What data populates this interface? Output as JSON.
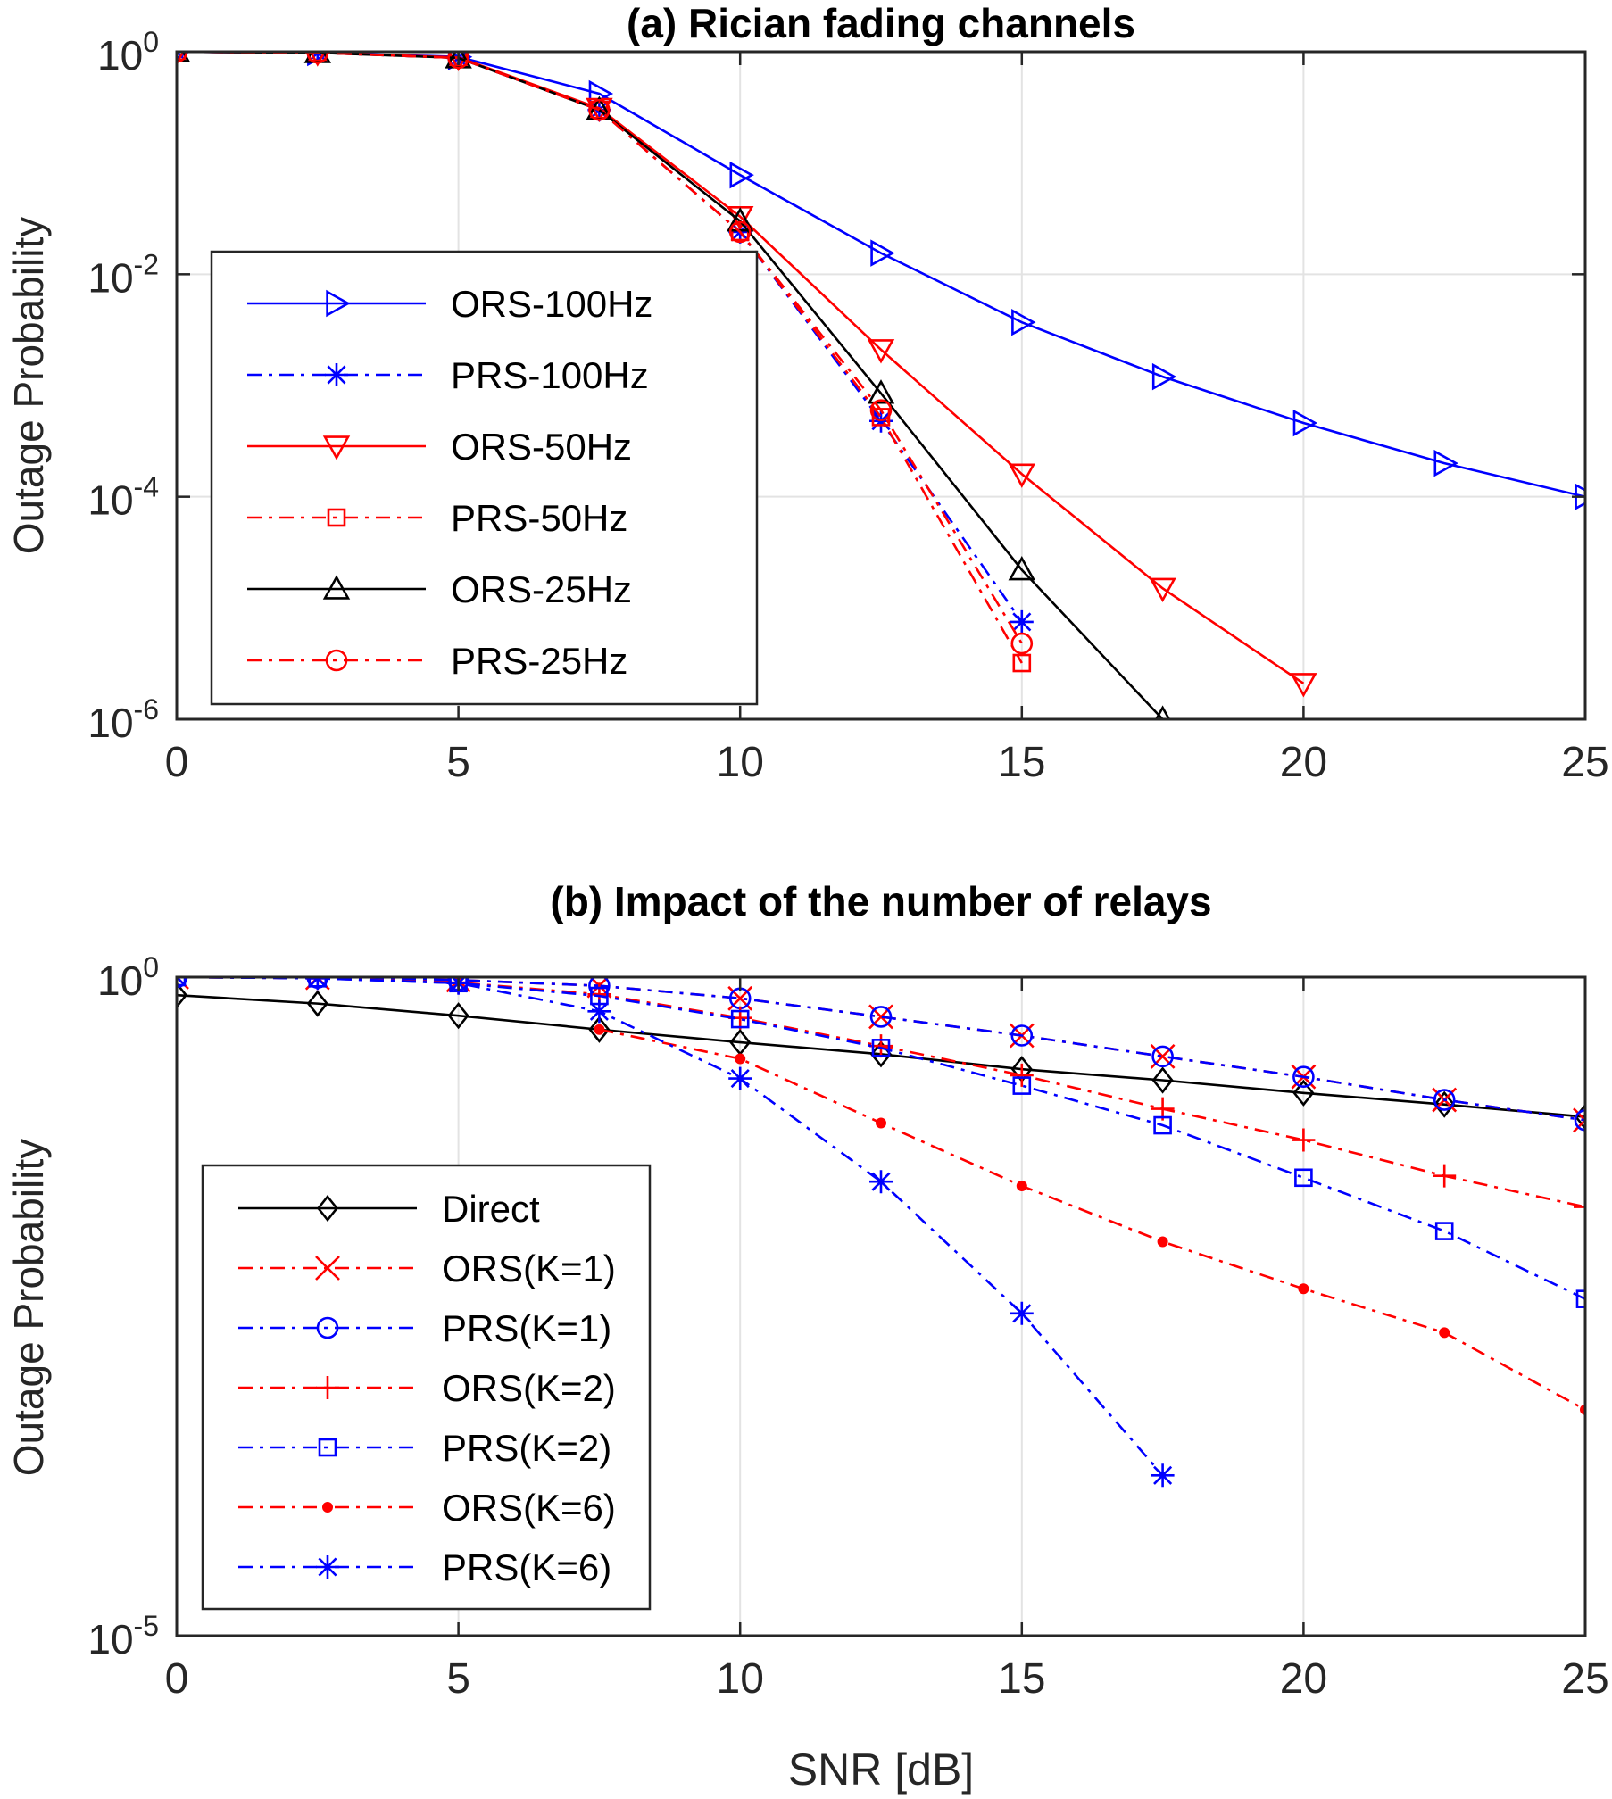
{
  "chart_data": [
    {
      "type": "line",
      "title": "(a) Rician fading channels",
      "xlabel": "",
      "ylabel": "Outage Probability",
      "xlim": [
        0,
        25
      ],
      "ylim": [
        1e-06,
        1
      ],
      "yscale": "log",
      "grid": true,
      "legend_position": "left-center",
      "xticks": [
        0,
        5,
        10,
        15,
        20,
        25
      ],
      "xtick_labels": [
        "0",
        "5",
        "10",
        "15",
        "20",
        "25"
      ],
      "yticks": [
        {
          "value": 1,
          "base": "10",
          "exp": "0"
        },
        {
          "value": 0.01,
          "base": "10",
          "exp": "-2"
        },
        {
          "value": 0.0001,
          "base": "10",
          "exp": "-4"
        },
        {
          "value": 1e-06,
          "base": "10",
          "exp": "-6"
        }
      ],
      "series": [
        {
          "name": "ORS-100Hz",
          "color": "#0000ff",
          "dash": "solid",
          "marker": "triangle-right",
          "x": [
            0,
            2.5,
            5,
            7.5,
            10,
            12.5,
            15,
            17.5,
            20,
            22.5,
            25
          ],
          "y": [
            1,
            0.98,
            0.9,
            0.42,
            0.078,
            0.0155,
            0.0037,
            0.0012,
            0.00046,
            0.0002,
            0.0001
          ]
        },
        {
          "name": "PRS-100Hz",
          "color": "#0000ff",
          "dash": "dashdot",
          "marker": "asterisk",
          "x": [
            0,
            2.5,
            5,
            7.5,
            10,
            12.5,
            15
          ],
          "y": [
            1,
            0.98,
            0.88,
            0.3,
            0.024,
            0.00048,
            7.5e-06
          ]
        },
        {
          "name": "ORS-50Hz",
          "color": "#ff0000",
          "dash": "solid",
          "marker": "triangle-down",
          "x": [
            0,
            2.5,
            5,
            7.5,
            10,
            12.5,
            15,
            17.5,
            20
          ],
          "y": [
            1,
            0.98,
            0.89,
            0.31,
            0.033,
            0.0021,
            0.00016,
            1.5e-05,
            2.1e-06
          ]
        },
        {
          "name": "PRS-50Hz",
          "color": "#ff0000",
          "dash": "dashdot",
          "marker": "square",
          "x": [
            0,
            2.5,
            5,
            7.5,
            10,
            12.5,
            15
          ],
          "y": [
            1,
            0.98,
            0.88,
            0.3,
            0.024,
            0.00052,
            3.2e-06
          ]
        },
        {
          "name": "ORS-25Hz",
          "color": "#000000",
          "dash": "solid",
          "marker": "triangle-up",
          "x": [
            0,
            2.5,
            5,
            7.5,
            10,
            12.5,
            15,
            17.5
          ],
          "y": [
            1,
            0.98,
            0.88,
            0.3,
            0.03,
            0.00085,
            2.2e-05,
            1e-06
          ]
        },
        {
          "name": "PRS-25Hz",
          "color": "#ff0000",
          "dash": "dashdot",
          "marker": "circle",
          "x": [
            0,
            2.5,
            5,
            7.5,
            10,
            12.5,
            15
          ],
          "y": [
            1,
            0.98,
            0.88,
            0.3,
            0.024,
            0.0006,
            4.8e-06
          ]
        }
      ]
    },
    {
      "type": "line",
      "title": "(b) Impact of the number of relays",
      "xlabel": "SNR [dB]",
      "ylabel": "Outage Probability",
      "xlim": [
        0,
        25
      ],
      "ylim": [
        1e-05,
        1
      ],
      "yscale": "log",
      "grid": true,
      "legend_position": "left-bottom",
      "xticks": [
        0,
        5,
        10,
        15,
        20,
        25
      ],
      "xtick_labels": [
        "0",
        "5",
        "10",
        "15",
        "20",
        "25"
      ],
      "yticks": [
        {
          "value": 1,
          "base": "10",
          "exp": "0"
        },
        {
          "value": 1e-05,
          "base": "10",
          "exp": "-5"
        }
      ],
      "series": [
        {
          "name": "Direct",
          "color": "#000000",
          "dash": "solid",
          "marker": "diamond",
          "x": [
            0,
            2.5,
            5,
            7.5,
            10,
            12.5,
            15,
            17.5,
            20,
            22.5,
            25
          ],
          "y": [
            0.73,
            0.63,
            0.51,
            0.4,
            0.32,
            0.26,
            0.2,
            0.165,
            0.132,
            0.108,
            0.087
          ]
        },
        {
          "name": "ORS(K=1)",
          "color": "#ff0000",
          "dash": "dashdot",
          "marker": "x",
          "x": [
            0,
            2.5,
            5,
            7.5,
            10,
            12.5,
            15,
            17.5,
            20,
            22.5,
            25
          ],
          "y": [
            1,
            0.99,
            0.95,
            0.86,
            0.69,
            0.5,
            0.36,
            0.25,
            0.175,
            0.117,
            0.082
          ]
        },
        {
          "name": "PRS(K=1)",
          "color": "#0000ff",
          "dash": "dashdot",
          "marker": "circle",
          "x": [
            0,
            2.5,
            5,
            7.5,
            10,
            12.5,
            15,
            17.5,
            20,
            22.5,
            25
          ],
          "y": [
            1,
            0.99,
            0.95,
            0.86,
            0.69,
            0.5,
            0.36,
            0.25,
            0.175,
            0.117,
            0.082
          ]
        },
        {
          "name": "ORS(K=2)",
          "color": "#ff0000",
          "dash": "dashdot",
          "marker": "plus",
          "x": [
            0,
            2.5,
            5,
            7.5,
            10,
            12.5,
            15,
            17.5,
            20,
            22.5,
            25
          ],
          "y": [
            1,
            0.98,
            0.91,
            0.74,
            0.49,
            0.3,
            0.18,
            0.1,
            0.058,
            0.031,
            0.018
          ]
        },
        {
          "name": "PRS(K=2)",
          "color": "#0000ff",
          "dash": "dashdot",
          "marker": "square",
          "x": [
            0,
            2.5,
            5,
            7.5,
            10,
            12.5,
            15,
            17.5,
            20,
            22.5,
            25
          ],
          "y": [
            1,
            0.98,
            0.9,
            0.72,
            0.48,
            0.29,
            0.15,
            0.075,
            0.03,
            0.0118,
            0.0036
          ]
        },
        {
          "name": "ORS(K=6)",
          "color": "#ff0000",
          "dash": "dashdot",
          "marker": "dot",
          "x": [
            7.5,
            10,
            12.5,
            15,
            17.5,
            20,
            22.5,
            25
          ],
          "y": [
            0.4,
            0.24,
            0.078,
            0.026,
            0.0098,
            0.0043,
            0.002,
            0.00052
          ]
        },
        {
          "name": "PRS(K=6)",
          "color": "#0000ff",
          "dash": "dashdot",
          "marker": "asterisk",
          "x": [
            0,
            2.5,
            5,
            7.5,
            10,
            12.5,
            15,
            17.5
          ],
          "y": [
            1,
            0.98,
            0.9,
            0.55,
            0.17,
            0.028,
            0.0028,
            0.000165
          ]
        }
      ]
    }
  ]
}
